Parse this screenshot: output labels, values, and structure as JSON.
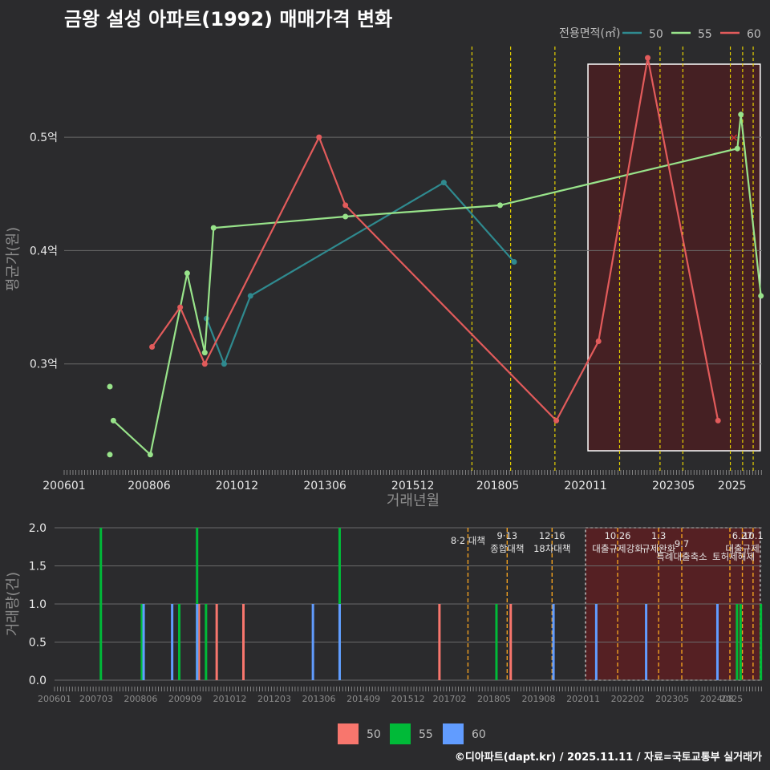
{
  "title": "금왕 설성 아파트(1992) 매매가격 변화",
  "credit": "©디아파트(dapt.kr) / 2025.11.11 / 자료=국토교통부 실거래가",
  "colors": {
    "s50": "#2f8a8f",
    "s55": "#98e38a",
    "s60": "#e25b5b",
    "b50": "#f8766d",
    "b55": "#00ba38",
    "b60": "#619cff",
    "policy": "#e6d200",
    "highlight": "#4a1f22"
  },
  "chart_data": [
    {
      "type": "line",
      "title": "금왕 설성 아파트(1992) 매매가격 변화",
      "xlabel": "거래년월",
      "ylabel": "평균가(원)",
      "legend_title": "전용면적(㎡)",
      "x_ticks": [
        "200601",
        "200806",
        "201012",
        "201306",
        "201512",
        "201805",
        "202011",
        "202305",
        "2025"
      ],
      "y_ticks": [
        "0.3억",
        "0.4억",
        "0.5억"
      ],
      "y_tick_values": [
        0.3,
        0.4,
        0.5
      ],
      "ylim": [
        0.205,
        0.58
      ],
      "xlim": [
        2006.0,
        2025.85
      ],
      "highlight_range": [
        2020.9,
        2025.8
      ],
      "policy_lines": [
        2017.6,
        2018.7,
        2019.96,
        2021.8,
        2022.95,
        2023.6,
        2024.95,
        2025.3,
        2025.6
      ],
      "series": [
        {
          "name": "50",
          "points": [
            [
              2010.05,
              0.34
            ],
            [
              2010.55,
              0.3
            ],
            [
              2011.3,
              0.36
            ],
            [
              2016.8,
              0.46
            ],
            [
              2018.8,
              0.39
            ]
          ]
        },
        {
          "name": "55",
          "points": [
            [
              2007.4,
              0.25
            ],
            [
              2008.45,
              0.22
            ],
            [
              2009.5,
              0.38
            ],
            [
              2010.0,
              0.31
            ],
            [
              2010.25,
              0.42
            ],
            [
              2014.0,
              0.43
            ],
            [
              2018.4,
              0.44
            ],
            [
              2025.15,
              0.49
            ],
            [
              2025.25,
              0.52
            ],
            [
              2025.82,
              0.36
            ]
          ]
        },
        {
          "name": "60",
          "points": [
            [
              2008.5,
              0.315
            ],
            [
              2009.3,
              0.35
            ],
            [
              2010.0,
              0.3
            ],
            [
              2013.25,
              0.5
            ],
            [
              2014.0,
              0.44
            ],
            [
              2020.0,
              0.25
            ],
            [
              2021.2,
              0.32
            ],
            [
              2022.6,
              0.57
            ],
            [
              2024.6,
              0.25
            ]
          ]
        }
      ],
      "extra_points": [
        {
          "name": "55",
          "x": 2007.3,
          "y": 0.28
        },
        {
          "name": "55",
          "x": 2007.3,
          "y": 0.22
        }
      ],
      "max_marker": {
        "x": 2025.05,
        "y": 0.5,
        "symbol": "×"
      }
    },
    {
      "type": "bar",
      "xlabel": "",
      "ylabel": "거래량(건)",
      "x_ticks": [
        "200601",
        "200703",
        "200806",
        "200909",
        "201012",
        "201203",
        "201306",
        "201409",
        "201512",
        "201702",
        "201805",
        "201908",
        "202011",
        "202202",
        "202305",
        "202408",
        "2025"
      ],
      "y_ticks": [
        "0.0",
        "0.5",
        "1.0",
        "1.5",
        "2.0"
      ],
      "y_tick_values": [
        0,
        0.5,
        1.0,
        1.5,
        2.0
      ],
      "ylim": [
        0,
        2.0
      ],
      "xlim": [
        2006.0,
        2025.85
      ],
      "highlight_range": [
        2020.9,
        2025.8
      ],
      "policy_lines": [
        2017.6,
        2018.7,
        2019.96,
        2021.8,
        2022.95,
        2023.6,
        2024.95,
        2025.3,
        2025.6
      ],
      "annotations": [
        {
          "x": 2017.6,
          "text": "8·2 대책"
        },
        {
          "x": 2018.7,
          "text": "9·13"
        },
        {
          "x": 2018.7,
          "text": "종합대책"
        },
        {
          "x": 2019.96,
          "text": "12·16"
        },
        {
          "x": 2019.96,
          "text": "18차대책"
        },
        {
          "x": 2021.8,
          "text": "10.26"
        },
        {
          "x": 2021.8,
          "text": "대출규제강화"
        },
        {
          "x": 2022.95,
          "text": "1.3"
        },
        {
          "x": 2022.95,
          "text": "규제완화"
        },
        {
          "x": 2023.6,
          "text": "9.7"
        },
        {
          "x": 2023.6,
          "text": "특례대출축소"
        },
        {
          "x": 2025.05,
          "text": "토허제해제"
        },
        {
          "x": 2025.3,
          "text": "6.27"
        },
        {
          "x": 2025.3,
          "text": "대출규제"
        },
        {
          "x": 2025.6,
          "text": "10.1"
        }
      ],
      "series": [
        {
          "name": "50",
          "bars": [
            [
              2010.05,
              1
            ],
            [
              2010.55,
              1
            ],
            [
              2011.3,
              1
            ],
            [
              2016.8,
              1
            ],
            [
              2018.8,
              1
            ]
          ]
        },
        {
          "name": "55",
          "bars": [
            [
              2007.3,
              2
            ],
            [
              2008.45,
              1
            ],
            [
              2009.5,
              1
            ],
            [
              2010.0,
              2
            ],
            [
              2010.25,
              1
            ],
            [
              2014.0,
              2
            ],
            [
              2018.4,
              1
            ],
            [
              2025.15,
              1
            ],
            [
              2025.25,
              1
            ],
            [
              2025.82,
              1
            ]
          ]
        },
        {
          "name": "60",
          "bars": [
            [
              2008.5,
              1
            ],
            [
              2009.3,
              1
            ],
            [
              2010.0,
              1
            ],
            [
              2013.25,
              1
            ],
            [
              2014.0,
              1
            ],
            [
              2020.0,
              1
            ],
            [
              2021.2,
              1
            ],
            [
              2022.6,
              1
            ],
            [
              2024.6,
              1
            ]
          ]
        }
      ],
      "legend": [
        "50",
        "55",
        "60"
      ]
    }
  ]
}
